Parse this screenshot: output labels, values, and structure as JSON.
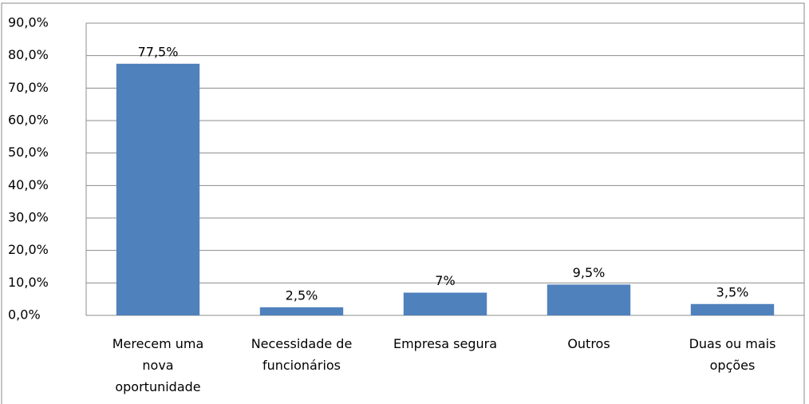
{
  "chart_data": {
    "type": "bar",
    "categories": [
      "Merecem uma nova oportunidade",
      "Necessidade de funcionários",
      "Empresa segura",
      "Outros",
      "Duas ou mais opções"
    ],
    "values": [
      77.5,
      2.5,
      7,
      9.5,
      3.5
    ],
    "value_labels": [
      "77,5%",
      "2,5%",
      "7%",
      "9,5%",
      "3,5%"
    ],
    "color": "#4f81bd",
    "ylim": [
      0,
      90
    ],
    "yticks": [
      {
        "value": 0,
        "label": "0,0%"
      },
      {
        "value": 10,
        "label": "10,0%"
      },
      {
        "value": 20,
        "label": "20,0%"
      },
      {
        "value": 30,
        "label": "30,0%"
      },
      {
        "value": 40,
        "label": "40,0%"
      },
      {
        "value": 50,
        "label": "50,0%"
      },
      {
        "value": 60,
        "label": "60,0%"
      },
      {
        "value": 70,
        "label": "70,0%"
      },
      {
        "value": 80,
        "label": "80,0%"
      },
      {
        "value": 90,
        "label": "90,0%"
      }
    ],
    "grid": true
  }
}
